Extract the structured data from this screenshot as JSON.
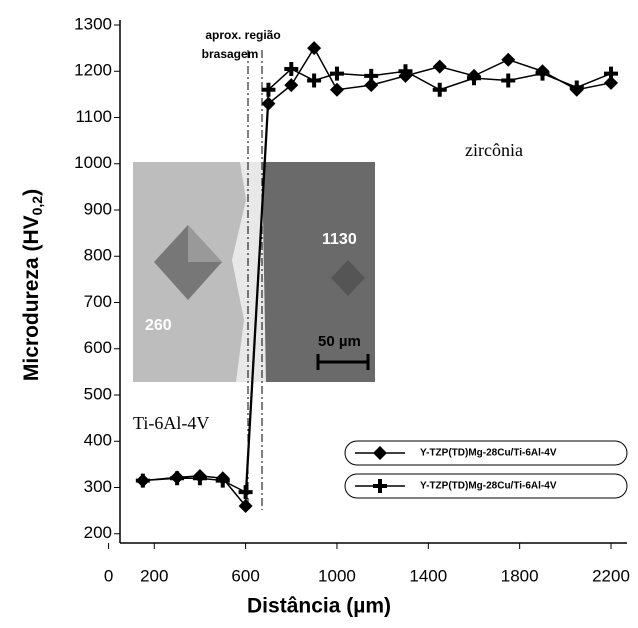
{
  "chart_data": {
    "type": "line",
    "y_label": "Microdureza (HV",
    "y_label_sub": "0,2",
    "y_label_end": ")",
    "x_label": "Distância (µm)",
    "annotations": {
      "region_line1": "aprox. região",
      "region_line2": "brasagem",
      "zirconia": "zircônia",
      "titanium": "Ti-6Al-4V",
      "inset_left": "260",
      "inset_right": "1130",
      "inset_scale": "50 µm"
    },
    "xlim": [
      50,
      2270
    ],
    "ylim": [
      180,
      1300
    ],
    "xticks": [
      0,
      200,
      600,
      1000,
      1400,
      1800,
      2200
    ],
    "yticks": [
      200,
      300,
      400,
      500,
      600,
      700,
      800,
      900,
      1000,
      1100,
      1200,
      1300
    ],
    "series": [
      {
        "name": "Y-TZP(TD)Mg-28Cu/Ti-6Al-4V",
        "color": "#000000",
        "marker": "diamond",
        "x": [
          150,
          300,
          400,
          500,
          600,
          700,
          800,
          900,
          1000,
          1150,
          1300,
          1450,
          1600,
          1750,
          1900,
          2050,
          2200
        ],
        "values": [
          315,
          322,
          325,
          320,
          260,
          1130,
          1170,
          1250,
          1160,
          1170,
          1190,
          1210,
          1190,
          1225,
          1200,
          1160,
          1175
        ]
      },
      {
        "name": "Y-TZP(TD)Mg-28Cu/Ti-6Al-4V",
        "color": "#000000",
        "marker": "plus",
        "x": [
          150,
          300,
          400,
          500,
          600,
          700,
          800,
          900,
          1000,
          1150,
          1300,
          1450,
          1600,
          1750,
          1900,
          2050,
          2200
        ],
        "values": [
          315,
          320,
          320,
          315,
          290,
          1160,
          1205,
          1180,
          1195,
          1190,
          1200,
          1160,
          1185,
          1180,
          1195,
          1165,
          1195
        ]
      }
    ]
  }
}
